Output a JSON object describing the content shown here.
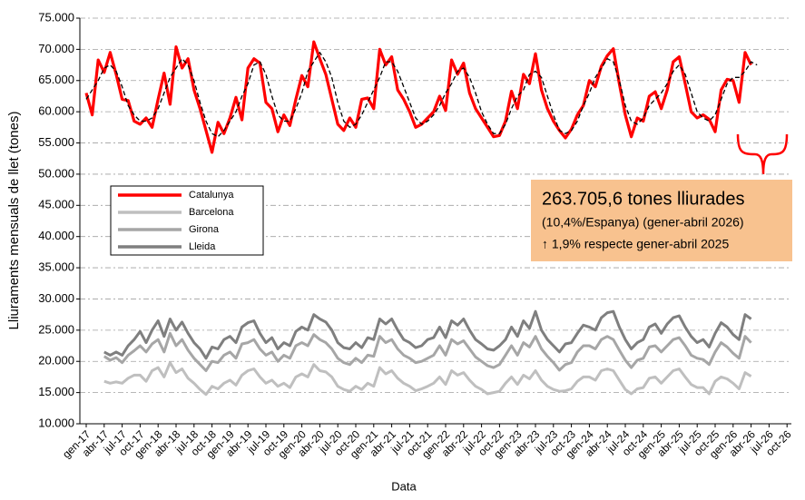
{
  "chart_data": {
    "type": "line",
    "y_label": "Lliuraments mensuals de llet (tones)",
    "x_label": "Data",
    "grid": true,
    "ylim": [
      10000,
      75000
    ],
    "yticks": [
      {
        "value": 10000,
        "label": "10.000"
      },
      {
        "value": 15000,
        "label": "15.000"
      },
      {
        "value": 20000,
        "label": "20.000"
      },
      {
        "value": 25000,
        "label": "25.000"
      },
      {
        "value": 30000,
        "label": "30.000"
      },
      {
        "value": 35000,
        "label": "35.000"
      },
      {
        "value": 40000,
        "label": "40.000"
      },
      {
        "value": 45000,
        "label": "45.000"
      },
      {
        "value": 50000,
        "label": "50.000"
      },
      {
        "value": 55000,
        "label": "55.000"
      },
      {
        "value": 60000,
        "label": "60.000"
      },
      {
        "value": 65000,
        "label": "65.000"
      },
      {
        "value": 70000,
        "label": "70.000"
      },
      {
        "value": 75000,
        "label": "75.000"
      }
    ],
    "categories": [
      "gen-17",
      null,
      null,
      "abr-17",
      null,
      null,
      "jul-17",
      null,
      null,
      "oct-17",
      null,
      null,
      "gen-18",
      null,
      null,
      "abr-18",
      null,
      null,
      "jul-18",
      null,
      null,
      "oct-18",
      null,
      null,
      "gen-19",
      null,
      null,
      "abr-19",
      null,
      null,
      "jul-19",
      null,
      null,
      "oct-19",
      null,
      null,
      "gen-20",
      null,
      null,
      "abr-20",
      null,
      null,
      "jul-20",
      null,
      null,
      "oct-20",
      null,
      null,
      "gen-21",
      null,
      null,
      "abr-21",
      null,
      null,
      "jul-21",
      null,
      null,
      "oct-21",
      null,
      null,
      "gen-22",
      null,
      null,
      "abr-22",
      null,
      null,
      "jul-22",
      null,
      null,
      "oct-22",
      null,
      null,
      "gen-23",
      null,
      null,
      "abr-23",
      null,
      null,
      "jul-23",
      null,
      null,
      "oct-23",
      null,
      null,
      "gen-24",
      null,
      null,
      "abr-24",
      null,
      null,
      "jul-24",
      null,
      null,
      "oct-24",
      null,
      null,
      "gen-25",
      null,
      null,
      "abr-25",
      null,
      null,
      "jul-25",
      null,
      null,
      "oct-25",
      null,
      null,
      "gen-26",
      null,
      null,
      "abr-26",
      null,
      null,
      "jul-26",
      null,
      null,
      "oct-26"
    ],
    "series": [
      {
        "name": "Barcelona",
        "color": "#bfbfbf",
        "values": [
          null,
          null,
          null,
          16800,
          16500,
          16700,
          16500,
          17300,
          17800,
          17800,
          16800,
          18500,
          19000,
          17500,
          19800,
          18200,
          18800,
          17300,
          16500,
          15500,
          14700,
          16000,
          15600,
          16500,
          17000,
          16200,
          17800,
          18500,
          18800,
          17500,
          16500,
          17000,
          16000,
          16500,
          15800,
          17500,
          18000,
          17500,
          19500,
          18500,
          18300,
          17500,
          16000,
          15500,
          15200,
          16000,
          15500,
          16500,
          16000,
          19000,
          18000,
          18500,
          17300,
          16500,
          16000,
          15300,
          15600,
          16000,
          16500,
          17500,
          16300,
          18500,
          17800,
          18200,
          17000,
          16000,
          15500,
          14800,
          15000,
          15200,
          16500,
          17500,
          16300,
          17800,
          17200,
          18500,
          17000,
          16000,
          15500,
          15200,
          15300,
          15600,
          16800,
          17500,
          17500,
          17000,
          18500,
          18800,
          18500,
          17000,
          15500,
          14800,
          15600,
          15800,
          17300,
          17500,
          16500,
          17500,
          18500,
          18800,
          17500,
          16300,
          15800,
          15800,
          14800,
          16800,
          17500,
          17200,
          16500,
          15600,
          18200,
          17600,
          null,
          null,
          null,
          null,
          null,
          null
        ]
      },
      {
        "name": "Girona",
        "color": "#a6a6a6",
        "values": [
          null,
          null,
          null,
          20800,
          20200,
          20600,
          19800,
          21000,
          21700,
          22500,
          21500,
          22800,
          23500,
          21500,
          24500,
          22500,
          23500,
          21800,
          20500,
          19500,
          18500,
          20000,
          19800,
          21000,
          21500,
          20500,
          22800,
          23000,
          23500,
          22000,
          21000,
          21500,
          20000,
          21000,
          20500,
          22500,
          23000,
          22500,
          24300,
          23500,
          23000,
          22000,
          20500,
          19800,
          19500,
          20500,
          19800,
          21000,
          20800,
          24000,
          23000,
          23500,
          22000,
          21000,
          20500,
          19800,
          20000,
          20500,
          21000,
          22500,
          21000,
          23500,
          22800,
          23300,
          22000,
          20700,
          20000,
          19300,
          19000,
          19500,
          21000,
          22500,
          21000,
          23000,
          22300,
          24000,
          22000,
          20800,
          19800,
          18600,
          19500,
          19800,
          21500,
          22500,
          22500,
          22000,
          23500,
          24000,
          23500,
          21800,
          20200,
          19000,
          20200,
          20500,
          22300,
          22500,
          21500,
          22500,
          23500,
          23800,
          22500,
          21000,
          20500,
          20300,
          19500,
          21500,
          23000,
          22300,
          21300,
          20500,
          24000,
          23000,
          null,
          null,
          null,
          null,
          null,
          null
        ]
      },
      {
        "name": "Lleida",
        "color": "#7f7f7f",
        "values": [
          null,
          null,
          null,
          21500,
          21000,
          21500,
          21000,
          22500,
          23500,
          24800,
          23000,
          25000,
          26500,
          24000,
          26800,
          25000,
          26300,
          24500,
          23000,
          22000,
          20500,
          22300,
          22000,
          23500,
          24000,
          23000,
          25500,
          26200,
          26500,
          24500,
          23000,
          23800,
          22000,
          23000,
          22500,
          24800,
          25500,
          25000,
          27500,
          26800,
          26300,
          25000,
          23000,
          22200,
          22000,
          23000,
          22200,
          23800,
          23500,
          26800,
          26000,
          26800,
          25000,
          23500,
          23000,
          22200,
          22500,
          23500,
          23800,
          25500,
          23800,
          26500,
          25800,
          26800,
          25000,
          23500,
          22800,
          22000,
          21800,
          22500,
          23500,
          25500,
          24000,
          26500,
          25300,
          28000,
          25000,
          23500,
          22500,
          21500,
          22800,
          23000,
          24500,
          25800,
          25500,
          25000,
          27000,
          27800,
          28000,
          25500,
          23500,
          22000,
          23000,
          23500,
          25500,
          26000,
          24500,
          26000,
          27000,
          27300,
          25500,
          24000,
          23000,
          23500,
          22300,
          24500,
          26200,
          25500,
          24300,
          23500,
          27500,
          26800,
          null,
          null,
          null,
          null,
          null,
          null
        ]
      },
      {
        "name": "Catalunya",
        "color": "#ff0000",
        "values": [
          63000,
          59500,
          68300,
          66300,
          69500,
          66000,
          62000,
          61800,
          58500,
          58000,
          59000,
          57500,
          62000,
          66200,
          61200,
          70400,
          67000,
          68500,
          63500,
          60500,
          57000,
          53500,
          58300,
          56500,
          59000,
          62300,
          58700,
          67000,
          68500,
          67800,
          61500,
          60500,
          56800,
          59500,
          57800,
          62000,
          65800,
          64000,
          71200,
          68500,
          66000,
          62000,
          58000,
          57000,
          59000,
          57500,
          62000,
          62200,
          60500,
          70000,
          67500,
          68800,
          63500,
          62000,
          60000,
          57500,
          58000,
          59000,
          60000,
          62500,
          60200,
          68300,
          66000,
          67800,
          63000,
          60500,
          59000,
          57500,
          56000,
          56200,
          58500,
          63300,
          60500,
          66000,
          64500,
          69300,
          63500,
          60500,
          58500,
          57000,
          55800,
          57200,
          59500,
          61000,
          65000,
          64000,
          67300,
          69000,
          70100,
          64500,
          59500,
          56000,
          59000,
          58500,
          62500,
          63200,
          60500,
          63500,
          68000,
          68800,
          64500,
          60000,
          59000,
          59500,
          58800,
          56800,
          63500,
          65200,
          65000,
          61500,
          69500,
          67500,
          null,
          null,
          null,
          null,
          null,
          null
        ]
      },
      {
        "color": "#000000",
        "dashed": true,
        "values": [
          62000,
          63500,
          65000,
          67000,
          67500,
          66500,
          64000,
          61000,
          59500,
          58500,
          58500,
          59000,
          60500,
          63000,
          65500,
          67000,
          68500,
          67500,
          65000,
          61500,
          58500,
          56500,
          56000,
          57000,
          58500,
          60000,
          62500,
          64500,
          67500,
          68000,
          66000,
          62500,
          59500,
          58500,
          58500,
          60500,
          63000,
          66500,
          68000,
          69500,
          68000,
          65500,
          61500,
          58500,
          57500,
          58000,
          59500,
          61500,
          63500,
          65500,
          68000,
          68000,
          66500,
          64000,
          61500,
          59000,
          58000,
          58500,
          59500,
          61000,
          63000,
          64500,
          66500,
          67000,
          65500,
          63000,
          60000,
          58000,
          56500,
          56500,
          58000,
          60500,
          62500,
          63500,
          66000,
          66500,
          65500,
          62500,
          59500,
          57000,
          56500,
          57000,
          58500,
          61000,
          63000,
          65500,
          67000,
          68500,
          68000,
          65000,
          61000,
          58500,
          58000,
          59000,
          61000,
          62000,
          63000,
          64500,
          66500,
          67500,
          66000,
          63000,
          60000,
          59000,
          58500,
          59500,
          62000,
          64500,
          65500,
          65500,
          66500,
          68000,
          67500,
          null,
          null,
          null,
          null,
          null
        ]
      }
    ],
    "legend_order": [
      3,
      0,
      1,
      2
    ],
    "annotation": {
      "lines": [
        "263.705,6 tones lliurades",
        "(10,4%/Espanya) (gener-abril 2026)",
        "↑ 1,9% respecte gener-abril 2025"
      ],
      "background": "#f8c28f"
    }
  }
}
